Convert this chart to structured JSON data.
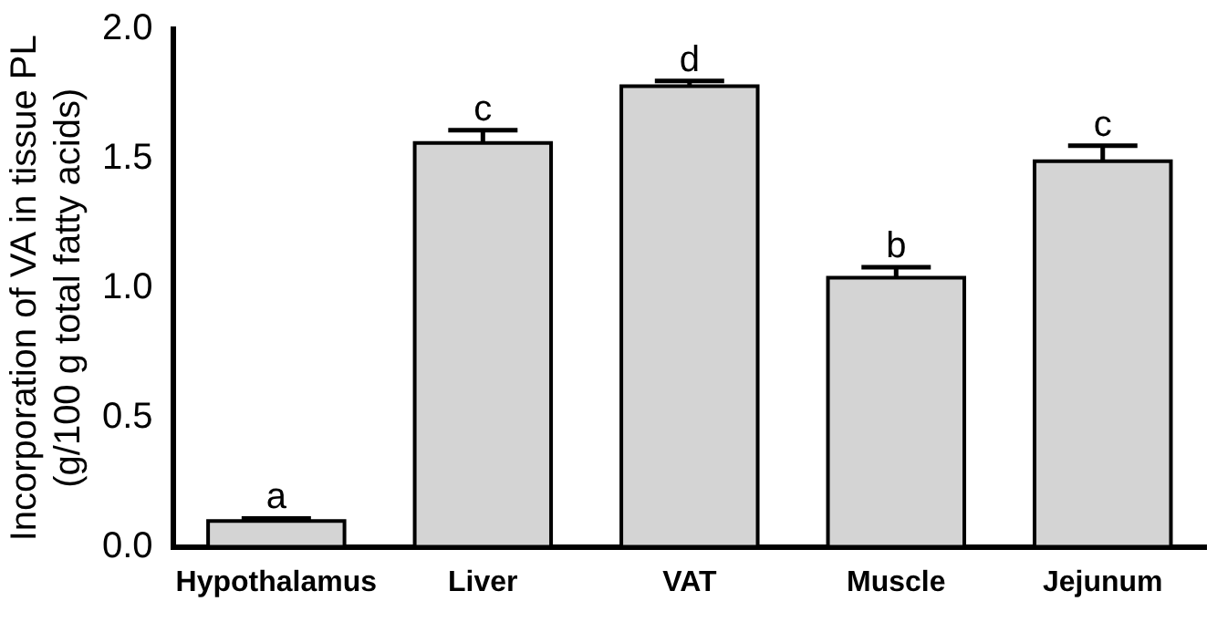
{
  "chart_data": {
    "type": "bar",
    "ylabel": "Incorporation of VA in tissue PL\n(g/100 g total fatty acids)",
    "categories": [
      "Hypothalamus",
      "Liver",
      "VAT",
      "Muscle",
      "Jejunum"
    ],
    "values": [
      0.1,
      1.56,
      1.78,
      1.04,
      1.49
    ],
    "errors": [
      [
        0.1,
        0.11
      ],
      [
        1.56,
        1.61
      ],
      [
        1.78,
        1.8
      ],
      [
        1.04,
        1.08
      ],
      [
        1.49,
        1.55
      ]
    ],
    "color": "#d4d4d4",
    "ylim": [
      0,
      2
    ],
    "yticks": [
      {
        "value": 0,
        "label": "0.0"
      },
      {
        "value": 0.5,
        "label": "0.5"
      },
      {
        "value": 1,
        "label": "1.0"
      },
      {
        "value": 1.5,
        "label": "1.5"
      },
      {
        "value": 2,
        "label": "2.0"
      }
    ],
    "annotations": [
      {
        "text": "a",
        "x": "Hypothalamus",
        "y": 0.11
      },
      {
        "text": "c",
        "x": "Liver",
        "y": 1.61
      },
      {
        "text": "d",
        "x": "VAT",
        "y": 1.8
      },
      {
        "text": "b",
        "x": "Muscle",
        "y": 1.08
      },
      {
        "text": "c",
        "x": "Jejunum",
        "y": 1.55
      }
    ],
    "grid": false,
    "legend": false
  }
}
